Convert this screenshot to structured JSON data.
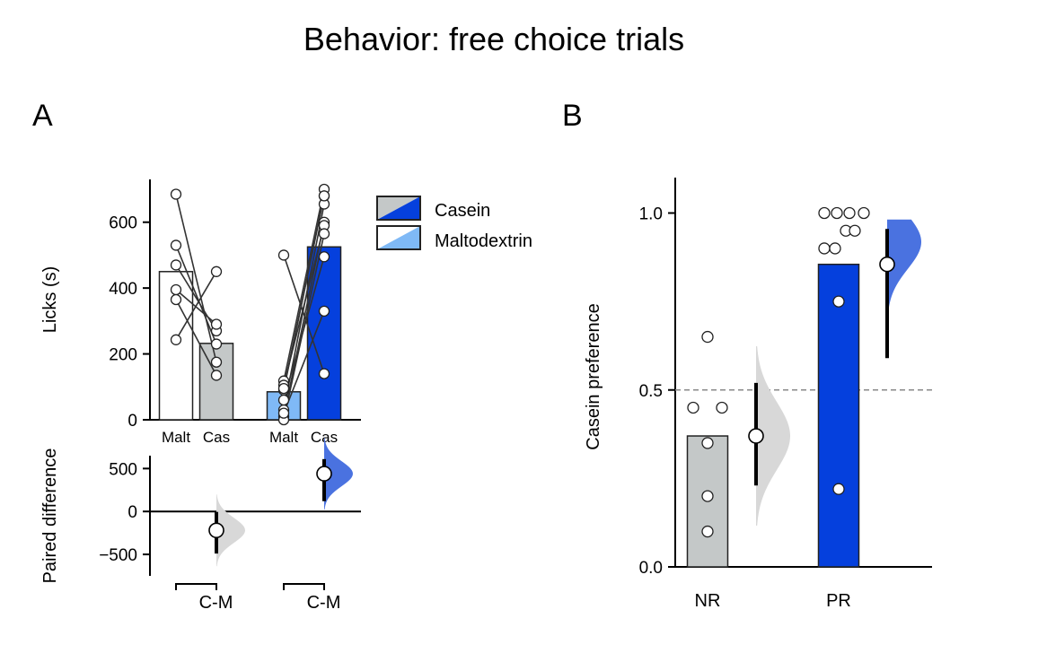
{
  "title": "Behavior: free choice trials",
  "colors": {
    "casein": "#0540dd",
    "casein_light": "#5b83e6",
    "casein_dist": "#4a72e0",
    "malt": "#7fb9f6",
    "grey": "#c4c8c8",
    "grey_dist": "#d8d8d8",
    "axis": "#000000",
    "line": "#333333",
    "ref_line": "#888888"
  },
  "legend": [
    {
      "label": "Casein",
      "color_a": "#c4c8c8",
      "color_b": "#0540dd"
    },
    {
      "label": "Maltodextrin",
      "color_a": "#ffffff",
      "color_b": "#7fb9f6"
    }
  ],
  "chart_data": [
    {
      "panel": "A",
      "type": "bar",
      "ylabel": "Licks (s)",
      "ylim": [
        0,
        730
      ],
      "yticks": [
        0,
        200,
        400,
        600
      ],
      "groups": [
        {
          "bars": [
            {
              "label": "Malt",
              "value": 450,
              "fill": "#ffffff"
            },
            {
              "label": "Cas",
              "value": 232,
              "fill": "#c4c8c8"
            }
          ],
          "pairs": [
            [
              685,
              175
            ],
            [
              530,
              230
            ],
            [
              470,
              270
            ],
            [
              395,
              290
            ],
            [
              365,
              135
            ],
            [
              243,
              450
            ]
          ]
        },
        {
          "bars": [
            {
              "label": "Malt",
              "value": 85,
              "fill": "#7fb9f6"
            },
            {
              "label": "Cas",
              "value": 525,
              "fill": "#0540dd"
            }
          ],
          "pairs": [
            [
              500,
              140
            ],
            [
              118,
              700
            ],
            [
              90,
              680
            ],
            [
              30,
              655
            ],
            [
              10,
              600
            ],
            [
              105,
              590
            ],
            [
              0,
              565
            ],
            [
              60,
              495
            ],
            [
              20,
              330
            ],
            [
              95,
              680
            ]
          ]
        }
      ]
    },
    {
      "panel": "A",
      "type": "scatter",
      "ylabel": "Paired difference",
      "ylim": [
        -750,
        650
      ],
      "yticks": [
        -500,
        0,
        500
      ],
      "xlabels": [
        "C-M",
        "C-M"
      ],
      "estimates": [
        {
          "mean": -220,
          "ci": [
            -490,
            -5
          ],
          "color": "#d8d8d8"
        },
        {
          "mean": 440,
          "ci": [
            120,
            610
          ],
          "color": "#4a72e0"
        }
      ]
    },
    {
      "panel": "B",
      "type": "bar",
      "ylabel": "Casein preference",
      "ylim": [
        -0.02,
        1.1
      ],
      "yticks": [
        0.0,
        0.5,
        1.0
      ],
      "ref_line": 0.5,
      "categories": [
        "NR",
        "PR"
      ],
      "values": [
        0.37,
        0.855
      ],
      "points": [
        [
          0.65,
          0.45,
          0.45,
          0.35,
          0.2,
          0.1
        ],
        [
          1.0,
          1.0,
          1.0,
          1.0,
          0.9,
          0.9,
          0.95,
          0.95,
          0.75,
          0.22
        ]
      ],
      "estimates": [
        {
          "mean": 0.37,
          "ci": [
            0.23,
            0.52
          ],
          "color": "#d8d8d8"
        },
        {
          "mean": 0.855,
          "ci": [
            0.59,
            0.955
          ],
          "color": "#4a72e0"
        }
      ]
    }
  ],
  "panel_labels": [
    "A",
    "B"
  ]
}
